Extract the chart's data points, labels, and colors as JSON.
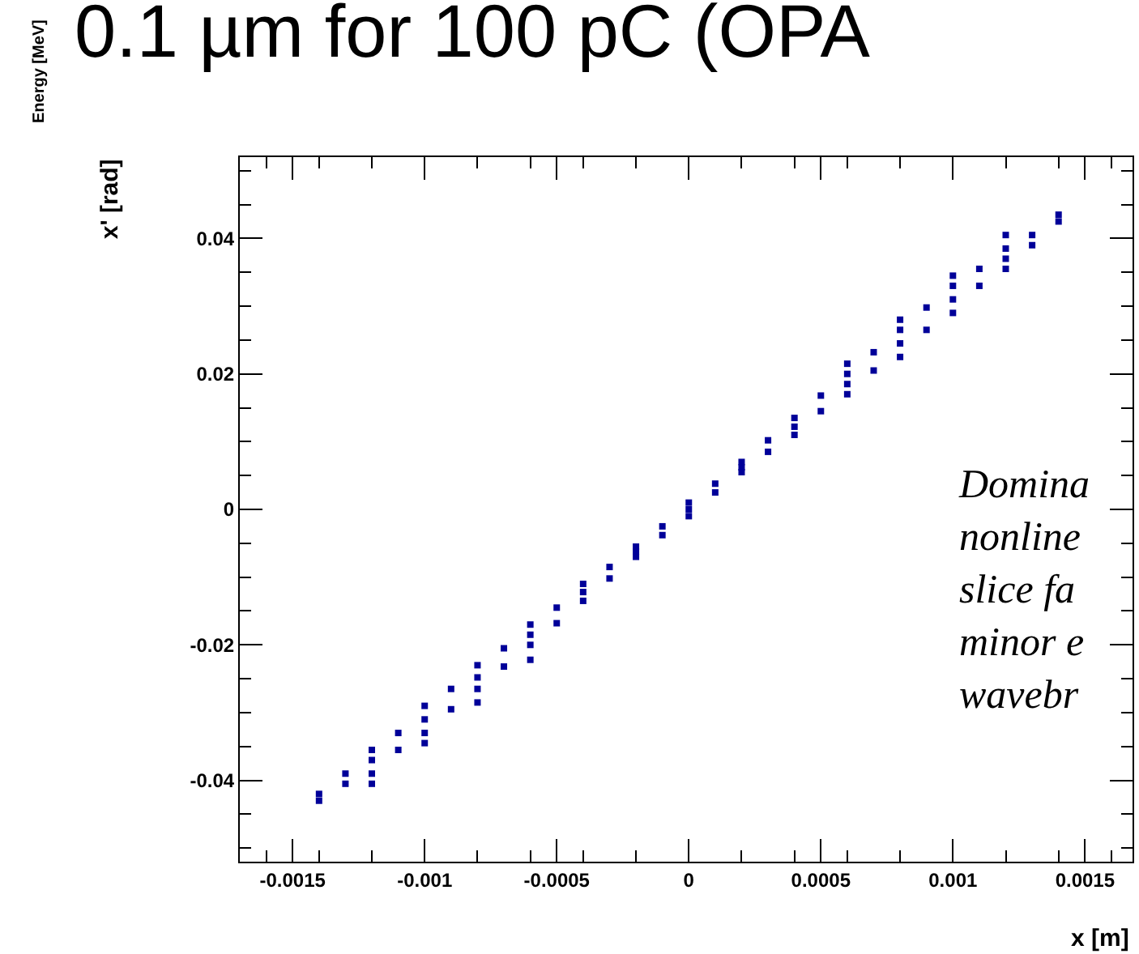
{
  "chart_data": {
    "type": "scatter",
    "title": "0.1 µm for 100 pC (OPA",
    "xlabel": "x [m]",
    "ylabel": "x' [rad]",
    "annotations": [
      "Energy [MeV]",
      "Domina\nnonline\nslice fa\nminor e\nwavebr"
    ],
    "xlim": [
      -0.0017,
      0.00168
    ],
    "ylim": [
      -0.052,
      0.052
    ],
    "xticks": [
      -0.0015,
      -0.001,
      -0.0005,
      0,
      0.0005,
      0.001,
      0.0015
    ],
    "yticks": [
      -0.04,
      -0.02,
      0,
      0.02,
      0.04
    ],
    "marker": "square",
    "series": [
      {
        "color": "#000099",
        "x": [
          -0.0014,
          -0.0014,
          -0.0012,
          -0.0012,
          -0.0012,
          -0.001,
          -0.001,
          -0.001,
          -0.0008,
          -0.0008,
          -0.0008,
          -0.0006,
          -0.0006,
          -0.0006,
          -0.0004,
          -0.0004,
          -0.0004,
          -0.0002,
          -0.0002,
          -0.0002,
          0,
          0,
          0,
          0.0002,
          0.0002,
          0.0002,
          0.0004,
          0.0004,
          0.0004,
          0.0006,
          0.0006,
          0.0006,
          0.0008,
          0.0008,
          0.0008,
          0.001,
          0.001,
          0.001,
          0.0012,
          0.0012,
          0.0012,
          0.0014,
          0.0014,
          0.0006,
          0.0008,
          0.001,
          0.0012,
          -0.0006,
          -0.0008,
          -0.001,
          -0.0012,
          -0.0013,
          -0.0013,
          -0.0011,
          -0.0011,
          -0.0009,
          -0.0009,
          -0.0007,
          -0.0007,
          -0.0005,
          -0.0005,
          -0.0003,
          -0.0003,
          -0.0001,
          -0.0001,
          0.0001,
          0.0001,
          0.0003,
          0.0003,
          0.0005,
          0.0005,
          0.0007,
          0.0007,
          0.0009,
          0.0009,
          0.0011,
          0.0011,
          0.0013,
          0.0013
        ],
        "values": [
          -0.043,
          -0.042,
          -0.039,
          -0.0355,
          -0.037,
          -0.033,
          -0.029,
          -0.031,
          -0.0265,
          -0.023,
          -0.0248,
          -0.02,
          -0.017,
          -0.0185,
          -0.0135,
          -0.011,
          -0.0122,
          -0.007,
          -0.0055,
          -0.0062,
          -0.001,
          0.001,
          0,
          0.0055,
          0.007,
          0.0062,
          0.011,
          0.0135,
          0.0122,
          0.017,
          0.02,
          0.0185,
          0.0225,
          0.0265,
          0.0245,
          0.029,
          0.033,
          0.031,
          0.0355,
          0.0385,
          0.037,
          0.0425,
          0.0435,
          0.0215,
          0.028,
          0.0345,
          0.0405,
          -0.0222,
          -0.0285,
          -0.0345,
          -0.0405,
          -0.0405,
          -0.039,
          -0.0355,
          -0.033,
          -0.0295,
          -0.0265,
          -0.0232,
          -0.0205,
          -0.0168,
          -0.0145,
          -0.0102,
          -0.0085,
          -0.0038,
          -0.0025,
          0.0025,
          0.0038,
          0.0085,
          0.0102,
          0.0145,
          0.0168,
          0.0205,
          0.0232,
          0.0265,
          0.0298,
          0.033,
          0.0355,
          0.039,
          0.0405
        ]
      }
    ]
  }
}
